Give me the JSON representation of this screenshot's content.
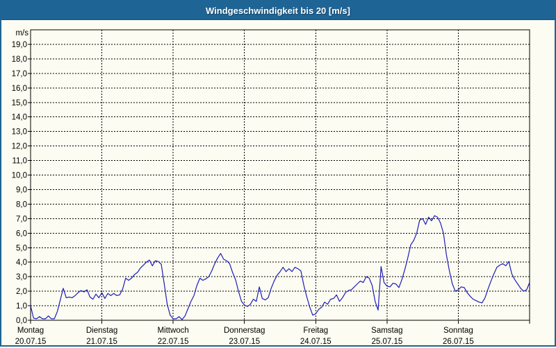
{
  "window": {
    "title": "Windgeschwindigkeit bis 20 [m/s]"
  },
  "colors": {
    "titlebar_bg": "#1e6494",
    "page_bg": "#fcfcf2",
    "frame_border": "#1e6494",
    "line": "#1c1cb8",
    "grid": "#000000",
    "text": "#000000",
    "title_text": "#ffffff"
  },
  "chart_data": {
    "type": "line",
    "title": "Windgeschwindigkeit bis 20 [m/s]",
    "series_name": "Windgeschwindigkeit",
    "unit": "m/s",
    "ylabel": "m/s",
    "ylim": [
      0,
      20
    ],
    "ytick_step": 1,
    "ytick_labels_top_to_bottom": [
      "19,0",
      "18,0",
      "17,0",
      "16,0",
      "15,0",
      "14,0",
      "13,0",
      "12,0",
      "11,0",
      "10,0",
      "9,0",
      "8,0",
      "7,0",
      "6,0",
      "5,0",
      "4,0",
      "3,0",
      "2,0",
      "1,0",
      "0,0"
    ],
    "grid": "dashed",
    "legend_position": "none",
    "x_days": [
      {
        "name": "Montag",
        "date": "20.07.15"
      },
      {
        "name": "Dienstag",
        "date": "21.07.15"
      },
      {
        "name": "Mittwoch",
        "date": "22.07.15"
      },
      {
        "name": "Donnerstag",
        "date": "23.07.15"
      },
      {
        "name": "Freitag",
        "date": "24.07.15"
      },
      {
        "name": "Samstag",
        "date": "25.07.15"
      },
      {
        "name": "Sonntag",
        "date": "26.07.15"
      }
    ],
    "interval_hours": 1,
    "values_m_per_s": [
      1.0,
      0.15,
      0.1,
      0.25,
      0.1,
      0.1,
      0.3,
      0.1,
      0.1,
      0.6,
      1.4,
      2.2,
      1.55,
      1.6,
      1.55,
      1.7,
      1.9,
      2.05,
      1.95,
      2.1,
      1.6,
      1.45,
      1.8,
      1.55,
      1.9,
      1.5,
      1.85,
      1.7,
      1.85,
      1.7,
      1.75,
      2.15,
      2.9,
      2.75,
      2.9,
      3.15,
      3.3,
      3.6,
      3.8,
      4.0,
      4.15,
      3.75,
      4.1,
      4.05,
      3.85,
      2.5,
      1.1,
      0.35,
      0.1,
      0.1,
      0.25,
      0.05,
      0.3,
      0.8,
      1.3,
      1.7,
      2.4,
      2.9,
      2.75,
      2.85,
      3.0,
      3.4,
      3.9,
      4.3,
      4.6,
      4.2,
      4.1,
      3.9,
      3.3,
      2.8,
      2.0,
      1.3,
      1.05,
      0.95,
      1.1,
      1.45,
      1.3,
      2.3,
      1.5,
      1.4,
      1.55,
      2.2,
      2.7,
      3.1,
      3.35,
      3.65,
      3.35,
      3.55,
      3.35,
      3.65,
      3.55,
      3.4,
      2.4,
      1.6,
      0.9,
      0.35,
      0.45,
      0.75,
      0.9,
      1.25,
      1.1,
      1.45,
      1.5,
      1.75,
      1.3,
      1.55,
      1.9,
      2.05,
      2.1,
      2.3,
      2.5,
      2.7,
      2.6,
      3.0,
      2.9,
      2.4,
      1.3,
      0.7,
      3.7,
      2.6,
      2.35,
      2.3,
      2.55,
      2.5,
      2.25,
      2.8,
      3.5,
      4.3,
      5.2,
      5.5,
      6.0,
      6.9,
      7.0,
      6.6,
      7.1,
      6.85,
      7.2,
      7.1,
      6.7,
      6.0,
      4.5,
      3.4,
      2.5,
      2.0,
      2.1,
      2.3,
      2.25,
      1.9,
      1.65,
      1.45,
      1.35,
      1.25,
      1.2,
      1.55,
      2.15,
      2.7,
      3.2,
      3.65,
      3.8,
      3.9,
      3.75,
      4.05,
      3.2,
      2.8,
      2.5,
      2.2,
      2.0,
      2.1,
      2.6
    ]
  }
}
